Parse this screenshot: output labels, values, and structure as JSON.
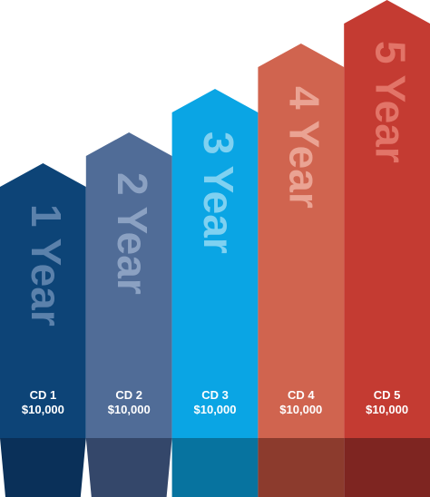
{
  "columns": [
    {
      "label": "1 Year",
      "cd": "CD 1",
      "amount": "$10,000",
      "color": "#0d4477",
      "text_color": "#5b81ab",
      "shade": "#0a3059"
    },
    {
      "label": "2 Year",
      "cd": "CD 2",
      "amount": "$10,000",
      "color": "#506c97",
      "text_color": "#8ba1c2",
      "shade": "#34476a"
    },
    {
      "label": "3 Year",
      "cd": "CD 3",
      "amount": "$10,000",
      "color": "#0aa5e4",
      "text_color": "#7fd1f1",
      "shade": "#07739f"
    },
    {
      "label": "4 Year",
      "cd": "CD 4",
      "amount": "$10,000",
      "color": "#d0644f",
      "text_color": "#eaa393",
      "shade": "#8c3b2d"
    },
    {
      "label": "5 Year",
      "cd": "CD 5",
      "amount": "$10,000",
      "color": "#c43b32",
      "text_color": "#e27468",
      "shade": "#7e2521"
    }
  ]
}
